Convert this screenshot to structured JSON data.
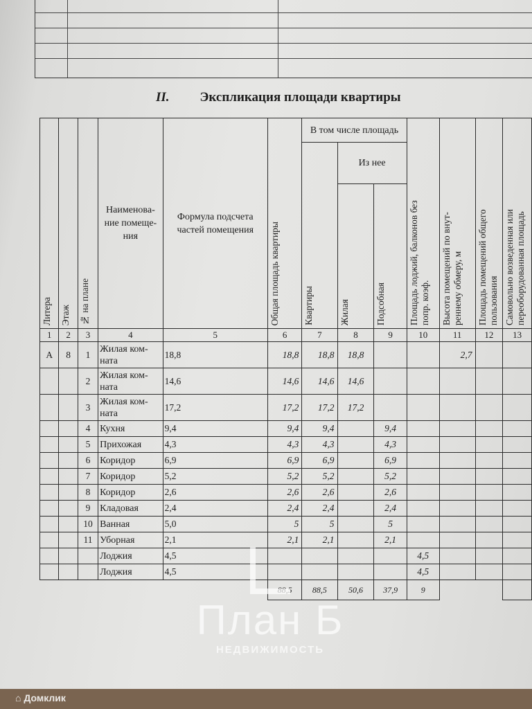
{
  "document": {
    "section_number": "II.",
    "title": "Экспликация площади квартиры"
  },
  "table": {
    "headers": {
      "c1": "Литера",
      "c2": "Этаж",
      "c3": "№ на плане",
      "c4": "Наименова-ние помеще-ния",
      "c5": "Формула подсчета частей помещения",
      "c6": "Общая площадь квартиры",
      "group": "В том числе площадь",
      "c7": "Квартиры",
      "subgroup": "Из нее",
      "c8": "Жилая",
      "c9": "Подсобная",
      "c10": "Площадь лоджий, балконов без попр. коэф.",
      "c11": "Высота помещений по внут-реннему обмеру, м",
      "c12": "Площадь помещений общего пользования",
      "c13": "Самовольно возведенная или переоборудованная площадь"
    },
    "column_numbers": [
      "1",
      "2",
      "3",
      "4",
      "5",
      "6",
      "7",
      "8",
      "9",
      "10",
      "11",
      "12",
      "13"
    ],
    "rows": [
      {
        "litera": "А",
        "floor": "8",
        "no": "1",
        "name": "Жилая ком-ната",
        "formula": "18,8",
        "total": "18,8",
        "apt": "18,8",
        "living": "18,8",
        "aux": "",
        "loggia": "",
        "height": "2,7"
      },
      {
        "litera": "",
        "floor": "",
        "no": "2",
        "name": "Жилая ком-ната",
        "formula": "14,6",
        "total": "14,6",
        "apt": "14,6",
        "living": "14,6",
        "aux": "",
        "loggia": "",
        "height": ""
      },
      {
        "litera": "",
        "floor": "",
        "no": "3",
        "name": "Жилая ком-ната",
        "formula": "17,2",
        "total": "17,2",
        "apt": "17,2",
        "living": "17,2",
        "aux": "",
        "loggia": "",
        "height": ""
      },
      {
        "litera": "",
        "floor": "",
        "no": "4",
        "name": "Кухня",
        "formula": "9,4",
        "total": "9,4",
        "apt": "9,4",
        "living": "",
        "aux": "9,4",
        "loggia": "",
        "height": ""
      },
      {
        "litera": "",
        "floor": "",
        "no": "5",
        "name": "Прихожая",
        "formula": "4,3",
        "total": "4,3",
        "apt": "4,3",
        "living": "",
        "aux": "4,3",
        "loggia": "",
        "height": ""
      },
      {
        "litera": "",
        "floor": "",
        "no": "6",
        "name": "Коридор",
        "formula": "6,9",
        "total": "6,9",
        "apt": "6,9",
        "living": "",
        "aux": "6,9",
        "loggia": "",
        "height": ""
      },
      {
        "litera": "",
        "floor": "",
        "no": "7",
        "name": "Коридор",
        "formula": "5,2",
        "total": "5,2",
        "apt": "5,2",
        "living": "",
        "aux": "5,2",
        "loggia": "",
        "height": ""
      },
      {
        "litera": "",
        "floor": "",
        "no": "8",
        "name": "Коридор",
        "formula": "2,6",
        "total": "2,6",
        "apt": "2,6",
        "living": "",
        "aux": "2,6",
        "loggia": "",
        "height": ""
      },
      {
        "litera": "",
        "floor": "",
        "no": "9",
        "name": "Кладовая",
        "formula": "2,4",
        "total": "2,4",
        "apt": "2,4",
        "living": "",
        "aux": "2,4",
        "loggia": "",
        "height": ""
      },
      {
        "litera": "",
        "floor": "",
        "no": "10",
        "name": "Ванная",
        "formula": "5,0",
        "total": "5",
        "apt": "5",
        "living": "",
        "aux": "5",
        "loggia": "",
        "height": ""
      },
      {
        "litera": "",
        "floor": "",
        "no": "11",
        "name": "Уборная",
        "formula": "2,1",
        "total": "2,1",
        "apt": "2,1",
        "living": "",
        "aux": "2,1",
        "loggia": "",
        "height": ""
      },
      {
        "litera": "",
        "floor": "",
        "no": "",
        "name": "Лоджия",
        "formula": "4,5",
        "total": "",
        "apt": "",
        "living": "",
        "aux": "",
        "loggia": "4,5",
        "height": ""
      },
      {
        "litera": "",
        "floor": "",
        "no": "",
        "name": "Лоджия",
        "formula": "4,5",
        "total": "",
        "apt": "",
        "living": "",
        "aux": "",
        "loggia": "4,5",
        "height": ""
      }
    ],
    "totals": {
      "total": "88,5",
      "apt": "88,5",
      "living": "50,6",
      "aux": "37,9",
      "loggia": "9"
    }
  },
  "watermarks": {
    "agency": "План Б",
    "agency_sub": "НЕДВИЖИМОСТЬ",
    "platform": "Домклик"
  }
}
